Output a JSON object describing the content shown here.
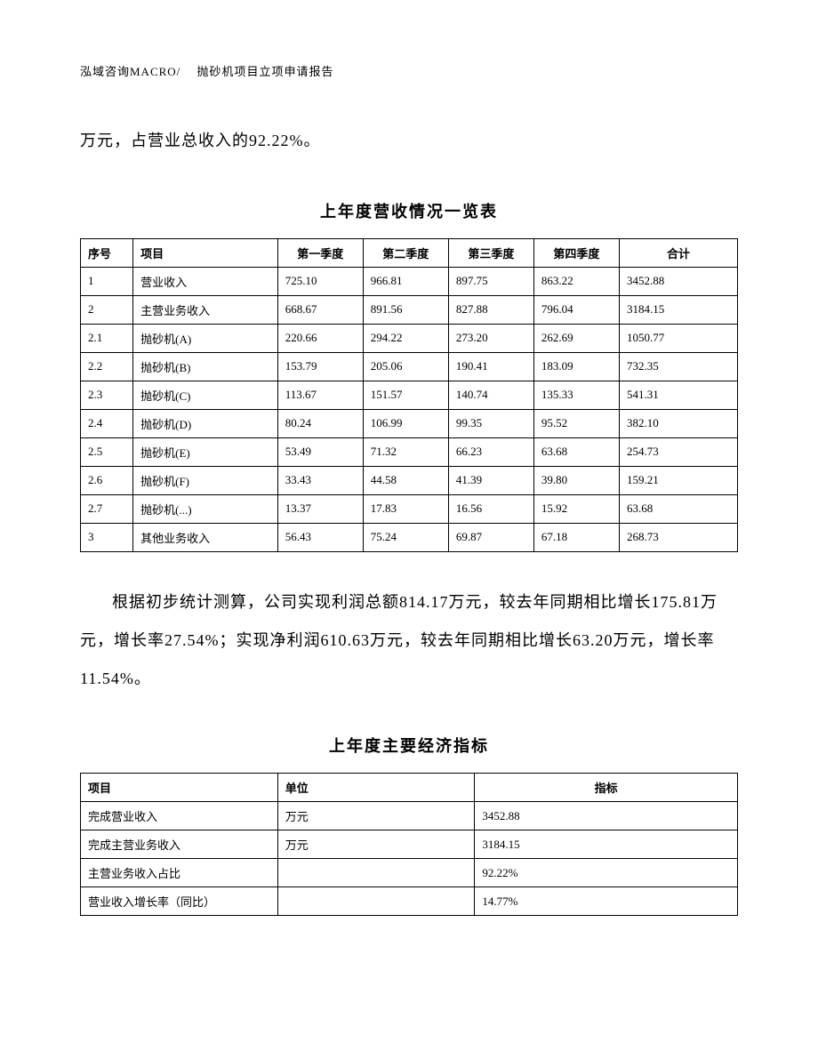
{
  "header": "泓域咨询MACRO/　 抛砂机项目立项申请报告",
  "intro_line": "万元，占营业总收入的92.22%。",
  "table1": {
    "title": "上年度营收情况一览表",
    "columns": [
      "序号",
      "项目",
      "第一季度",
      "第二季度",
      "第三季度",
      "第四季度",
      "合计"
    ],
    "rows": [
      [
        "1",
        "营业收入",
        "725.10",
        "966.81",
        "897.75",
        "863.22",
        "3452.88"
      ],
      [
        "2",
        "主营业务收入",
        "668.67",
        "891.56",
        "827.88",
        "796.04",
        "3184.15"
      ],
      [
        "2.1",
        "抛砂机(A)",
        "220.66",
        "294.22",
        "273.20",
        "262.69",
        "1050.77"
      ],
      [
        "2.2",
        "抛砂机(B)",
        "153.79",
        "205.06",
        "190.41",
        "183.09",
        "732.35"
      ],
      [
        "2.3",
        "抛砂机(C)",
        "113.67",
        "151.57",
        "140.74",
        "135.33",
        "541.31"
      ],
      [
        "2.4",
        "抛砂机(D)",
        "80.24",
        "106.99",
        "99.35",
        "95.52",
        "382.10"
      ],
      [
        "2.5",
        "抛砂机(E)",
        "53.49",
        "71.32",
        "66.23",
        "63.68",
        "254.73"
      ],
      [
        "2.6",
        "抛砂机(F)",
        "33.43",
        "44.58",
        "41.39",
        "39.80",
        "159.21"
      ],
      [
        "2.7",
        "抛砂机(...)",
        "13.37",
        "17.83",
        "16.56",
        "15.92",
        "63.68"
      ],
      [
        "3",
        "其他业务收入",
        "56.43",
        "75.24",
        "69.87",
        "67.18",
        "268.73"
      ]
    ]
  },
  "paragraph": "根据初步统计测算，公司实现利润总额814.17万元，较去年同期相比增长175.81万元，增长率27.54%；实现净利润610.63万元，较去年同期相比增长63.20万元，增长率11.54%。",
  "table2": {
    "title": "上年度主要经济指标",
    "columns": [
      "项目",
      "单位",
      "指标"
    ],
    "rows": [
      [
        "完成营业收入",
        "万元",
        "3452.88"
      ],
      [
        "完成主营业务收入",
        "万元",
        "3184.15"
      ],
      [
        "主营业务收入占比",
        "",
        "92.22%"
      ],
      [
        "营业收入增长率（同比）",
        "",
        "14.77%"
      ]
    ]
  }
}
